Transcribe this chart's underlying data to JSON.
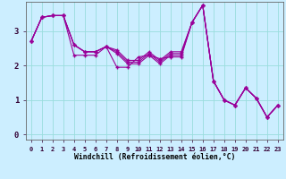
{
  "xlabel": "Windchill (Refroidissement éolien,°C)",
  "background_color": "#cceeff",
  "line_color": "#990099",
  "grid_color": "#99dddd",
  "x_ticks": [
    0,
    1,
    2,
    3,
    4,
    5,
    6,
    7,
    8,
    9,
    10,
    11,
    12,
    13,
    14,
    15,
    16,
    17,
    18,
    19,
    20,
    21,
    22,
    23
  ],
  "y_ticks": [
    0,
    1,
    2,
    3
  ],
  "ylim": [
    -0.15,
    3.85
  ],
  "xlim": [
    -0.5,
    23.5
  ],
  "series": [
    [
      2.7,
      3.4,
      3.45,
      3.45,
      2.3,
      2.3,
      2.3,
      2.55,
      1.95,
      1.95,
      2.25,
      2.3,
      2.2,
      2.25,
      2.25,
      3.25,
      3.75,
      1.55,
      1.0,
      0.85,
      1.35,
      1.05,
      0.5,
      0.85
    ],
    [
      2.7,
      3.4,
      3.45,
      3.45,
      2.6,
      2.4,
      2.4,
      2.55,
      2.35,
      2.05,
      2.05,
      2.3,
      2.05,
      2.3,
      2.3,
      3.25,
      3.75,
      1.55,
      1.0,
      0.85,
      1.35,
      1.05,
      0.5,
      0.85
    ],
    [
      2.7,
      3.4,
      3.45,
      3.45,
      2.6,
      2.4,
      2.4,
      2.55,
      2.4,
      2.1,
      2.1,
      2.35,
      2.1,
      2.35,
      2.35,
      3.25,
      3.75,
      1.55,
      1.0,
      0.85,
      1.35,
      1.05,
      0.5,
      0.85
    ],
    [
      2.7,
      3.4,
      3.45,
      3.45,
      2.6,
      2.4,
      2.4,
      2.55,
      2.45,
      2.15,
      2.15,
      2.4,
      2.15,
      2.4,
      2.4,
      3.25,
      3.75,
      1.55,
      1.0,
      0.85,
      1.35,
      1.05,
      0.5,
      0.85
    ]
  ]
}
